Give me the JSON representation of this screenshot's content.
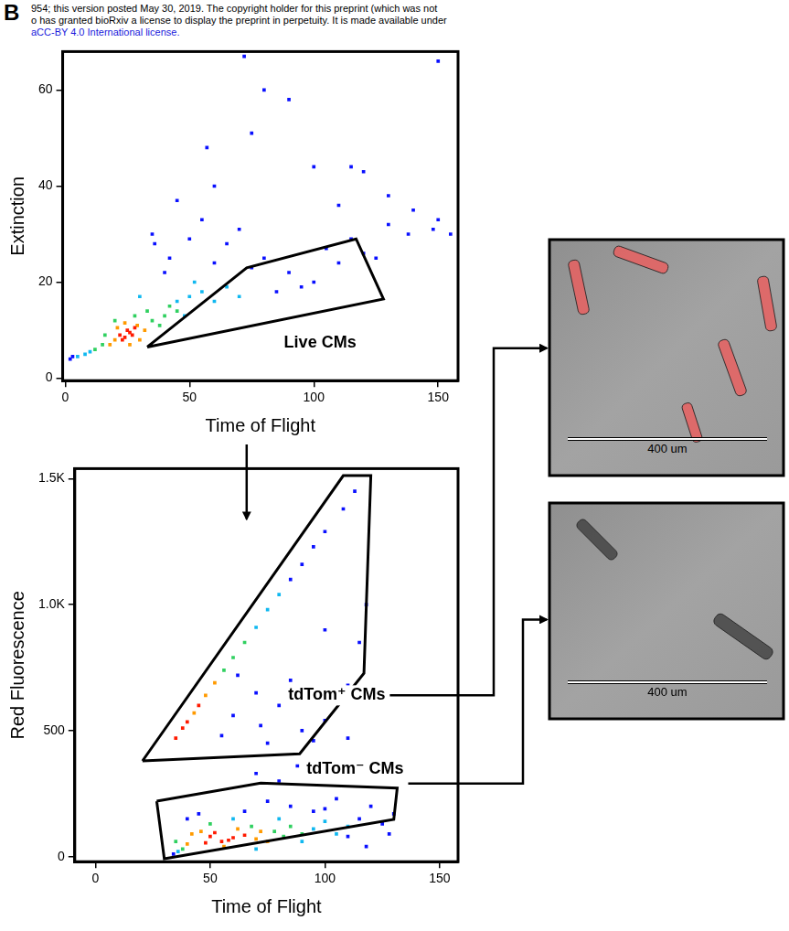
{
  "panel_label": "B",
  "header_lines": [
    "954; this version posted May 30, 2019. The copyright holder for this preprint (which was not",
    "o has granted bioRxiv a license to display the preprint in perpetuity. It is made available under",
    "aCC-BY 4.0 International license."
  ],
  "chart_data": [
    {
      "type": "scatter",
      "x_label": "Time of Flight",
      "y_label": "Extinction",
      "xlim": [
        -1,
        158
      ],
      "ylim": [
        -0.5,
        68
      ],
      "xticks": [
        0,
        50,
        100,
        150
      ],
      "yticks": [
        0,
        20,
        40,
        60
      ],
      "grid": false,
      "marker": "square",
      "series": [
        {
          "color": "#ff1a00",
          "x": [
            22,
            24,
            26,
            25,
            23,
            27,
            28
          ],
          "values": [
            9,
            8.5,
            9.5,
            10,
            8,
            9,
            10.5
          ]
        },
        {
          "color": "#ff9a00",
          "x": [
            18,
            20,
            30,
            29,
            21,
            32,
            24,
            26
          ],
          "values": [
            7,
            8,
            8,
            11,
            10.5,
            10,
            11.5,
            7
          ]
        },
        {
          "color": "#30d060",
          "x": [
            12,
            15,
            35,
            38,
            40,
            16,
            20,
            33,
            42,
            28,
            45
          ],
          "values": [
            6,
            7,
            12,
            11,
            13,
            9,
            12,
            14,
            15,
            13,
            14
          ]
        },
        {
          "color": "#10b8f0",
          "x": [
            5,
            8,
            10,
            45,
            50,
            55,
            60,
            48,
            30,
            65,
            70,
            52
          ],
          "values": [
            4.5,
            5,
            5.5,
            16,
            17,
            18,
            16,
            13,
            17,
            19,
            17,
            20
          ]
        },
        {
          "color": "#0a10ff",
          "x": [
            2,
            3,
            40,
            60,
            75,
            80,
            90,
            100,
            110,
            120,
            85,
            95,
            65,
            70,
            105,
            115,
            125,
            130,
            140,
            150,
            155,
            50,
            55,
            45,
            35,
            60,
            130,
            100,
            115,
            80,
            90,
            138,
            148,
            120,
            110,
            75,
            57,
            42,
            72,
            150,
            36
          ],
          "values": [
            4,
            4.5,
            22,
            24,
            23,
            25,
            22,
            20,
            24,
            26,
            18,
            19,
            28,
            31,
            27,
            29,
            25,
            32,
            35,
            33,
            30,
            29,
            33,
            37,
            30,
            40,
            38,
            44,
            44,
            60,
            58,
            30,
            31,
            43,
            36,
            51,
            48,
            25,
            67,
            66,
            28
          ]
        }
      ],
      "gates": [
        {
          "label": "Live CMs",
          "x": [
            33,
            73,
            117,
            128
          ],
          "y": [
            6.5,
            23,
            29,
            16.5
          ],
          "label_x": 88,
          "label_y": 7.4
        }
      ]
    },
    {
      "type": "scatter",
      "x_label": "Time of Flight",
      "y_label": "Red Fluorescence",
      "xlim": [
        -9,
        158
      ],
      "ylim": [
        -20,
        1540
      ],
      "xticks": [
        0,
        50,
        100,
        150
      ],
      "yticks": [
        0,
        500,
        {
          "value": 1000,
          "label": "1.0K"
        },
        {
          "value": 1500,
          "label": "1.5K"
        }
      ],
      "grid": false,
      "marker": "square",
      "series": [
        {
          "color": "#ff1a00",
          "x": [
            35,
            38,
            40,
            45,
            50,
            55,
            60,
            52,
            58,
            48,
            65
          ],
          "values": [
            470,
            510,
            535,
            600,
            80,
            60,
            75,
            95,
            65,
            55,
            85
          ]
        },
        {
          "color": "#ff9a00",
          "x": [
            43,
            48,
            52,
            40,
            42,
            70,
            72,
            75,
            62,
            56,
            46
          ],
          "values": [
            570,
            640,
            690,
            50,
            90,
            70,
            100,
            60,
            110,
            40,
            100
          ]
        },
        {
          "color": "#30d060",
          "x": [
            56,
            60,
            65,
            38,
            78,
            82,
            85,
            68,
            50,
            35,
            90
          ],
          "values": [
            740,
            790,
            850,
            30,
            100,
            80,
            120,
            120,
            130,
            60,
            90
          ]
        },
        {
          "color": "#10b8f0",
          "x": [
            70,
            75,
            80,
            36,
            90,
            95,
            100,
            105,
            80,
            60,
            110,
            70
          ],
          "values": [
            910,
            980,
            1040,
            20,
            60,
            110,
            140,
            90,
            150,
            150,
            120,
            30
          ]
        },
        {
          "color": "#0a10ff",
          "x": [
            85,
            90,
            95,
            100,
            108,
            113,
            60,
            70,
            80,
            75,
            90,
            100,
            110,
            105,
            95,
            85,
            62,
            118,
            115,
            100,
            72,
            55,
            110,
            70,
            80,
            88,
            34,
            40,
            110,
            115,
            120,
            125,
            130,
            100,
            105,
            85,
            95,
            118,
            128,
            75,
            65,
            45
          ],
          "values": [
            1100,
            1160,
            1230,
            1290,
            1380,
            1450,
            560,
            650,
            600,
            450,
            500,
            540,
            680,
            630,
            460,
            700,
            720,
            1000,
            850,
            900,
            520,
            480,
            470,
            330,
            300,
            360,
            10,
            150,
            80,
            150,
            200,
            130,
            170,
            190,
            230,
            200,
            180,
            40,
            90,
            220,
            180,
            170
          ]
        }
      ],
      "gates": [
        {
          "label": "tdTom⁺ CMs",
          "x": [
            20.5,
            108,
            120,
            117,
            89
          ],
          "y": [
            380,
            1512,
            1512,
            728,
            408
          ],
          "label_x": 84,
          "label_y": 640
        },
        {
          "label": "tdTom⁻ CMs",
          "x": [
            26.7,
            72,
            131.5,
            130,
            30
          ],
          "y": [
            220,
            292,
            272,
            148,
            -8
          ],
          "label_x": 92,
          "label_y": 348
        }
      ]
    }
  ],
  "images": [
    {
      "scale_bar_label": "400 um",
      "cell_color": "#e86060"
    },
    {
      "scale_bar_label": "400 um",
      "cell_color": "#3a3a3a"
    }
  ]
}
